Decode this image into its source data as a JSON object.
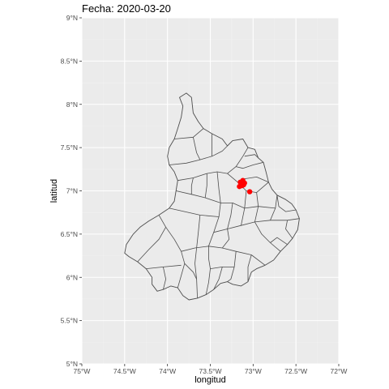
{
  "title": "Fecha: 2020-03-20",
  "xlabel": "longitud",
  "ylabel": "latitud",
  "colors": {
    "panel": "#ebebeb",
    "grid": "#ffffff",
    "border": "#4d4d4d",
    "fill": "#ebebeb",
    "point": "#ff0000"
  },
  "chart_data": {
    "type": "map",
    "xlim": [
      -75,
      -72
    ],
    "ylim": [
      5,
      9
    ],
    "x_ticks": [
      {
        "value": -75,
        "label": "75°W"
      },
      {
        "value": -74.5,
        "label": "74.5°W"
      },
      {
        "value": -74,
        "label": "74°W"
      },
      {
        "value": -73.5,
        "label": "73.5°W"
      },
      {
        "value": -73,
        "label": "73°W"
      },
      {
        "value": -72.5,
        "label": "72.5°W"
      },
      {
        "value": -72,
        "label": "72°W"
      }
    ],
    "y_ticks": [
      {
        "value": 5,
        "label": "5°N"
      },
      {
        "value": 5.5,
        "label": "5.5°N"
      },
      {
        "value": 6,
        "label": "6°N"
      },
      {
        "value": 6.5,
        "label": "6.5°N"
      },
      {
        "value": 7,
        "label": "7°N"
      },
      {
        "value": 7.5,
        "label": "7.5°N"
      },
      {
        "value": 8,
        "label": "8°N"
      },
      {
        "value": 8.5,
        "label": "8.5°N"
      },
      {
        "value": 9,
        "label": "9°N"
      }
    ],
    "outline": [
      [
        -73.78,
        8.13
      ],
      [
        -73.72,
        8.08
      ],
      [
        -73.7,
        7.9
      ],
      [
        -73.64,
        7.8
      ],
      [
        -73.58,
        7.72
      ],
      [
        -73.48,
        7.66
      ],
      [
        -73.36,
        7.6
      ],
      [
        -73.3,
        7.52
      ],
      [
        -73.24,
        7.58
      ],
      [
        -73.12,
        7.6
      ],
      [
        -73.06,
        7.5
      ],
      [
        -72.98,
        7.48
      ],
      [
        -72.94,
        7.38
      ],
      [
        -72.88,
        7.33
      ],
      [
        -72.85,
        7.22
      ],
      [
        -72.82,
        7.1
      ],
      [
        -72.78,
        7.02
      ],
      [
        -72.72,
        6.95
      ],
      [
        -72.62,
        6.9
      ],
      [
        -72.55,
        6.85
      ],
      [
        -72.5,
        6.78
      ],
      [
        -72.46,
        6.68
      ],
      [
        -72.48,
        6.55
      ],
      [
        -72.54,
        6.45
      ],
      [
        -72.6,
        6.38
      ],
      [
        -72.68,
        6.3
      ],
      [
        -72.76,
        6.2
      ],
      [
        -72.86,
        6.14
      ],
      [
        -72.96,
        6.1
      ],
      [
        -73.02,
        6.06
      ],
      [
        -73.06,
        5.95
      ],
      [
        -73.14,
        5.9
      ],
      [
        -73.24,
        5.92
      ],
      [
        -73.3,
        5.95
      ],
      [
        -73.38,
        5.93
      ],
      [
        -73.46,
        5.86
      ],
      [
        -73.55,
        5.8
      ],
      [
        -73.65,
        5.76
      ],
      [
        -73.75,
        5.74
      ],
      [
        -73.82,
        5.79
      ],
      [
        -73.88,
        5.88
      ],
      [
        -73.96,
        5.9
      ],
      [
        -74.05,
        5.86
      ],
      [
        -74.12,
        5.84
      ],
      [
        -74.18,
        5.92
      ],
      [
        -74.18,
        6.0
      ],
      [
        -74.25,
        6.1
      ],
      [
        -74.35,
        6.18
      ],
      [
        -74.45,
        6.24
      ],
      [
        -74.5,
        6.28
      ],
      [
        -74.48,
        6.38
      ],
      [
        -74.4,
        6.5
      ],
      [
        -74.32,
        6.58
      ],
      [
        -74.22,
        6.65
      ],
      [
        -74.1,
        6.72
      ],
      [
        -73.98,
        6.8
      ],
      [
        -73.92,
        6.88
      ],
      [
        -73.9,
        7.0
      ],
      [
        -73.88,
        7.12
      ],
      [
        -73.92,
        7.22
      ],
      [
        -73.98,
        7.3
      ],
      [
        -74.0,
        7.4
      ],
      [
        -73.98,
        7.5
      ],
      [
        -73.92,
        7.6
      ],
      [
        -73.88,
        7.72
      ],
      [
        -73.84,
        7.85
      ],
      [
        -73.82,
        7.98
      ],
      [
        -73.86,
        8.08
      ],
      [
        -73.78,
        8.13
      ]
    ],
    "boundaries": [
      [
        [
          -73.92,
          7.6
        ],
        [
          -73.7,
          7.62
        ],
        [
          -73.58,
          7.72
        ]
      ],
      [
        [
          -73.98,
          7.3
        ],
        [
          -73.78,
          7.32
        ],
        [
          -73.62,
          7.36
        ],
        [
          -73.48,
          7.4
        ],
        [
          -73.36,
          7.46
        ],
        [
          -73.3,
          7.52
        ]
      ],
      [
        [
          -73.88,
          7.12
        ],
        [
          -73.7,
          7.15
        ],
        [
          -73.54,
          7.2
        ],
        [
          -73.42,
          7.22
        ],
        [
          -73.3,
          7.2
        ]
      ],
      [
        [
          -73.48,
          7.66
        ],
        [
          -73.48,
          7.4
        ]
      ],
      [
        [
          -73.7,
          7.62
        ],
        [
          -73.66,
          7.44
        ],
        [
          -73.62,
          7.36
        ]
      ],
      [
        [
          -73.3,
          7.2
        ],
        [
          -73.2,
          7.28
        ],
        [
          -73.12,
          7.4
        ],
        [
          -73.06,
          7.5
        ]
      ],
      [
        [
          -73.3,
          7.2
        ],
        [
          -73.18,
          7.1
        ],
        [
          -73.08,
          7.0
        ],
        [
          -72.96,
          6.98
        ],
        [
          -72.82,
          7.1
        ]
      ],
      [
        [
          -73.42,
          7.22
        ],
        [
          -73.4,
          7.02
        ],
        [
          -73.38,
          6.86
        ],
        [
          -73.4,
          6.7
        ],
        [
          -73.46,
          6.52
        ],
        [
          -73.52,
          6.36
        ]
      ],
      [
        [
          -73.9,
          7.0
        ],
        [
          -73.72,
          6.96
        ],
        [
          -73.56,
          6.92
        ],
        [
          -73.38,
          6.86
        ]
      ],
      [
        [
          -73.98,
          6.8
        ],
        [
          -73.8,
          6.76
        ],
        [
          -73.62,
          6.72
        ],
        [
          -73.4,
          6.7
        ]
      ],
      [
        [
          -74.1,
          6.72
        ],
        [
          -74.02,
          6.58
        ],
        [
          -73.92,
          6.44
        ],
        [
          -73.84,
          6.3
        ],
        [
          -73.8,
          6.16
        ],
        [
          -73.84,
          6.02
        ],
        [
          -73.88,
          5.88
        ]
      ],
      [
        [
          -74.25,
          6.1
        ],
        [
          -74.05,
          6.12
        ],
        [
          -73.84,
          6.14
        ]
      ],
      [
        [
          -74.35,
          6.18
        ],
        [
          -74.22,
          6.32
        ],
        [
          -74.1,
          6.44
        ],
        [
          -74.02,
          6.58
        ]
      ],
      [
        [
          -73.84,
          6.3
        ],
        [
          -73.68,
          6.34
        ],
        [
          -73.52,
          6.36
        ],
        [
          -73.36,
          6.34
        ],
        [
          -73.2,
          6.3
        ],
        [
          -73.02,
          6.26
        ],
        [
          -72.86,
          6.14
        ]
      ],
      [
        [
          -73.62,
          6.72
        ],
        [
          -73.64,
          6.52
        ],
        [
          -73.66,
          6.34
        ],
        [
          -73.68,
          6.16
        ],
        [
          -73.66,
          5.98
        ],
        [
          -73.65,
          5.76
        ]
      ],
      [
        [
          -73.46,
          6.52
        ],
        [
          -73.3,
          6.56
        ],
        [
          -73.14,
          6.6
        ],
        [
          -72.98,
          6.64
        ],
        [
          -72.8,
          6.66
        ],
        [
          -72.6,
          6.66
        ],
        [
          -72.46,
          6.68
        ]
      ],
      [
        [
          -73.2,
          6.3
        ],
        [
          -73.22,
          6.12
        ],
        [
          -73.26,
          5.98
        ],
        [
          -73.3,
          5.95
        ]
      ],
      [
        [
          -73.02,
          6.26
        ],
        [
          -73.06,
          6.12
        ],
        [
          -73.06,
          5.95
        ]
      ],
      [
        [
          -73.14,
          6.6
        ],
        [
          -73.1,
          6.8
        ],
        [
          -73.08,
          7.0
        ]
      ],
      [
        [
          -72.98,
          6.64
        ],
        [
          -72.94,
          6.82
        ],
        [
          -72.96,
          6.98
        ]
      ],
      [
        [
          -72.8,
          6.66
        ],
        [
          -72.74,
          6.8
        ],
        [
          -72.72,
          6.95
        ]
      ],
      [
        [
          -72.72,
          6.95
        ],
        [
          -72.7,
          6.82
        ],
        [
          -72.62,
          6.76
        ],
        [
          -72.5,
          6.78
        ]
      ],
      [
        [
          -72.82,
          7.1
        ],
        [
          -72.96,
          7.16
        ],
        [
          -73.1,
          7.14
        ],
        [
          -73.18,
          7.1
        ]
      ],
      [
        [
          -72.88,
          7.33
        ],
        [
          -73.0,
          7.3
        ],
        [
          -73.12,
          7.26
        ],
        [
          -73.2,
          7.28
        ]
      ],
      [
        [
          -73.3,
          6.56
        ],
        [
          -73.28,
          6.44
        ],
        [
          -73.36,
          6.34
        ]
      ],
      [
        [
          -72.98,
          6.64
        ],
        [
          -72.9,
          6.5
        ],
        [
          -72.8,
          6.4
        ],
        [
          -72.68,
          6.3
        ]
      ],
      [
        [
          -72.6,
          6.38
        ],
        [
          -72.72,
          6.46
        ],
        [
          -72.8,
          6.4
        ]
      ],
      [
        [
          -72.54,
          6.45
        ],
        [
          -72.62,
          6.56
        ],
        [
          -72.6,
          6.66
        ]
      ],
      [
        [
          -73.56,
          6.92
        ],
        [
          -73.54,
          7.06
        ],
        [
          -73.54,
          7.2
        ]
      ],
      [
        [
          -73.72,
          6.96
        ],
        [
          -73.72,
          7.06
        ],
        [
          -73.7,
          7.15
        ]
      ],
      [
        [
          -73.8,
          6.16
        ],
        [
          -73.7,
          6.06
        ],
        [
          -73.66,
          5.98
        ]
      ],
      [
        [
          -74.05,
          5.86
        ],
        [
          -74.02,
          5.98
        ],
        [
          -74.05,
          6.12
        ]
      ],
      [
        [
          -73.55,
          5.8
        ],
        [
          -73.52,
          5.94
        ],
        [
          -73.5,
          6.1
        ],
        [
          -73.52,
          6.22
        ],
        [
          -73.52,
          6.36
        ]
      ],
      [
        [
          -73.5,
          6.1
        ],
        [
          -73.36,
          6.12
        ],
        [
          -73.22,
          6.12
        ]
      ],
      [
        [
          -73.46,
          5.86
        ],
        [
          -73.4,
          5.98
        ],
        [
          -73.36,
          6.12
        ]
      ],
      [
        [
          -73.1,
          7.4
        ],
        [
          -72.98,
          7.42
        ],
        [
          -72.94,
          7.38
        ]
      ],
      [
        [
          -73.24,
          6.86
        ],
        [
          -73.26,
          6.72
        ],
        [
          -73.3,
          6.56
        ]
      ],
      [
        [
          -73.38,
          6.86
        ],
        [
          -73.24,
          6.86
        ],
        [
          -73.1,
          6.8
        ],
        [
          -72.94,
          6.82
        ],
        [
          -72.74,
          6.8
        ]
      ]
    ],
    "points": [
      {
        "lon": -73.15,
        "lat": 7.1
      },
      {
        "lon": -73.12,
        "lat": 7.12
      },
      {
        "lon": -73.11,
        "lat": 7.07
      },
      {
        "lon": -73.16,
        "lat": 7.05
      },
      {
        "lon": -73.1,
        "lat": 7.09
      },
      {
        "lon": -73.13,
        "lat": 7.06
      },
      {
        "lon": -73.04,
        "lat": 6.99
      }
    ]
  }
}
